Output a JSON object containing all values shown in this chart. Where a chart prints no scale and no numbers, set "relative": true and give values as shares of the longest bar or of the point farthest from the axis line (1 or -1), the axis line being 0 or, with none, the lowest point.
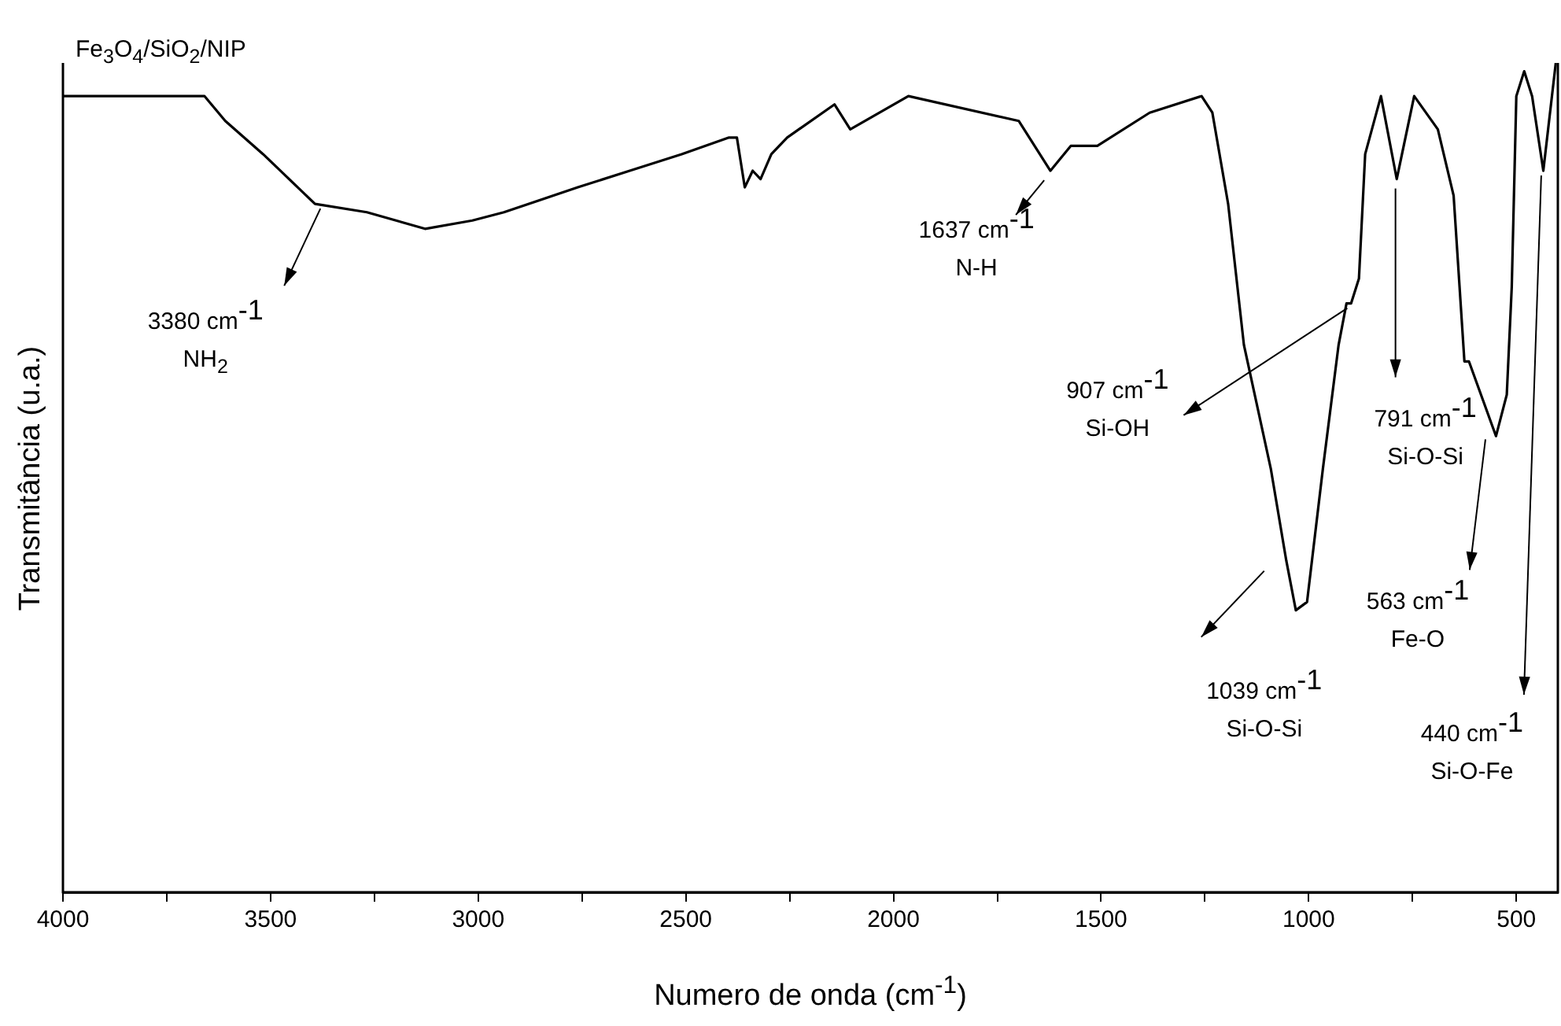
{
  "chart_data": {
    "type": "line",
    "title": "Fe$_{3}$O$_{4}$/SiO$_{2}$/NIP",
    "xlabel": "Numero de onda (cm$^{-1}$)",
    "ylabel": "Transmitância (u.a.)",
    "relative": true,
    "legend": false,
    "grid": false,
    "marker": "none",
    "x": [
      4000,
      3659,
      3609,
      3518,
      3393,
      3268,
      3128,
      3014,
      2938,
      2760,
      2635,
      2510,
      2396,
      2377,
      2358,
      2339,
      2320,
      2294,
      2256,
      2142,
      2104,
      1964,
      1698,
      1622,
      1573,
      1509,
      1383,
      1258,
      1232,
      1194,
      1156,
      1091,
      1054,
      1031,
      1004,
      966,
      928,
      909,
      898,
      879,
      864,
      826,
      788,
      746,
      689,
      651,
      625,
      614,
      549,
      523,
      511,
      500,
      481,
      462,
      435,
      405
    ],
    "series": [
      {
        "color": "#000000",
        "values": [
          0.96,
          0.96,
          0.93,
          0.89,
          0.83,
          0.82,
          0.8,
          0.81,
          0.82,
          0.85,
          0.87,
          0.89,
          0.91,
          0.91,
          0.85,
          0.87,
          0.86,
          0.89,
          0.91,
          0.95,
          0.92,
          0.96,
          0.93,
          0.87,
          0.9,
          0.9,
          0.94,
          0.96,
          0.94,
          0.83,
          0.66,
          0.51,
          0.4,
          0.34,
          0.35,
          0.51,
          0.66,
          0.71,
          0.71,
          0.74,
          0.89,
          0.96,
          0.86,
          0.96,
          0.92,
          0.84,
          0.64,
          0.64,
          0.55,
          0.6,
          0.73,
          0.96,
          0.99,
          0.96,
          0.87,
          1.0
        ]
      }
    ],
    "xlim": [
      4000,
      400
    ],
    "xticks": [
      4000,
      {
        "value": 3750,
        "label": null
      },
      3500,
      {
        "value": 3250,
        "label": null
      },
      3000,
      {
        "value": 2750,
        "label": null
      },
      2500,
      {
        "value": 2250,
        "label": null
      },
      2000,
      {
        "value": 1750,
        "label": null
      },
      1500,
      {
        "value": 1250,
        "label": null
      },
      1000,
      {
        "value": 750,
        "label": null
      },
      500
    ],
    "annotations": [
      {
        "text": "3380 cm$^{-1}$\nNH$_{2}$",
        "x": 3380,
        "y": 0.83
      },
      {
        "text": "1637 cm$^{-1}$\nN-H",
        "x": 1637,
        "y": 0.87
      },
      {
        "text": "907 cm$^{-1}$\nSi-OH",
        "x": 907,
        "y": 0.71
      },
      {
        "text": "791 cm$^{-1}$\nSi-O-Si",
        "x": 791,
        "y": 0.86
      },
      {
        "text": "563 cm$^{-1}$\nFe-O",
        "x": 563,
        "y": 0.55
      },
      {
        "text": "1039 cm$^{-1}$\nSi-O-Si",
        "x": 1039,
        "y": 0.34
      },
      {
        "text": "440 cm$^{-1}$\nSi-O-Fe",
        "x": 440,
        "y": 0.87
      }
    ]
  }
}
